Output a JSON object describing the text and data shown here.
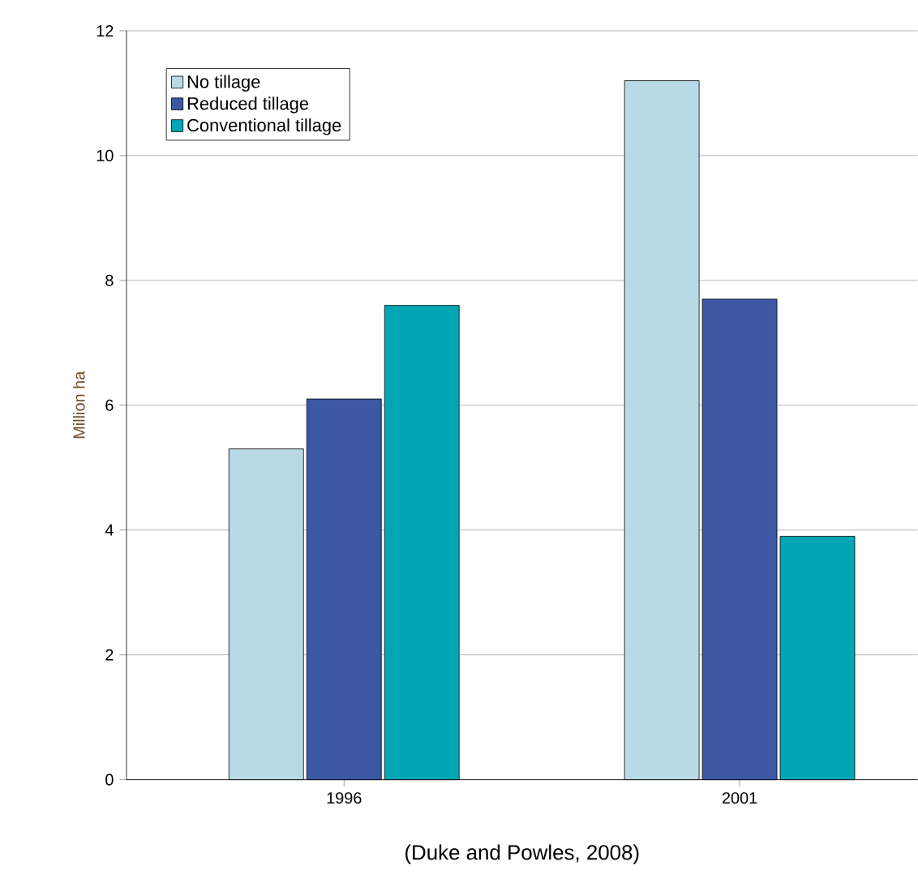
{
  "chart_data": {
    "type": "bar",
    "categories": [
      "1996",
      "2001"
    ],
    "ylabel": "Million ha",
    "series": [
      {
        "name": "No tillage",
        "color": "#b8dae6",
        "values": [
          5.3,
          11.2
        ]
      },
      {
        "name": "Reduced tillage",
        "color": "#3d58a3",
        "values": [
          6.1,
          7.7
        ]
      },
      {
        "name": "Conventional tillage",
        "color": "#00a6b4",
        "values": [
          7.6,
          3.9
        ]
      }
    ],
    "ylim": [
      0,
      12
    ],
    "yticks": [
      0,
      2,
      4,
      6,
      8,
      10,
      12
    ],
    "grid": "y",
    "legend": "top left",
    "annotations": [
      "(Duke and Powles, 2008)"
    ]
  }
}
